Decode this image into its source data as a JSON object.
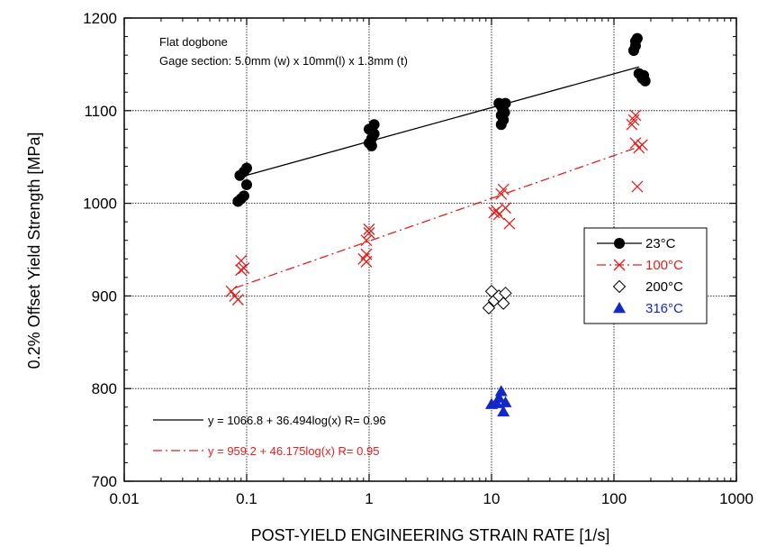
{
  "chart_data": {
    "type": "scatter",
    "x_scale": "log",
    "xlabel": "POST-YIELD ENGINEERING STRAIN RATE [1/s]",
    "ylabel": "0.2% Offset Yield Strength [MPa]",
    "xlim": [
      0.01,
      1000
    ],
    "ylim": [
      700,
      1200
    ],
    "x_ticks": [
      "0.01",
      "0.1",
      "1",
      "10",
      "100",
      "1000"
    ],
    "y_ticks": [
      "700",
      "800",
      "900",
      "1000",
      "1100",
      "1200"
    ],
    "grid": true,
    "legend_position": "right",
    "annotations": [
      "Flat dogbone",
      "Gage section: 5.0mm (w) x 10mm(l) x 1.3mm (t)"
    ],
    "series": [
      {
        "name": "23°C",
        "color": "#000000",
        "marker": "filled-circle",
        "points": [
          [
            0.085,
            1002
          ],
          [
            0.09,
            1005
          ],
          [
            0.095,
            1008
          ],
          [
            0.088,
            1030
          ],
          [
            0.095,
            1034
          ],
          [
            0.1,
            1038
          ],
          [
            0.1,
            1020
          ],
          [
            1.0,
            1065
          ],
          [
            1.05,
            1070
          ],
          [
            1.1,
            1075
          ],
          [
            1.0,
            1080
          ],
          [
            1.1,
            1085
          ],
          [
            1.05,
            1062
          ],
          [
            11.5,
            1108
          ],
          [
            12,
            1105
          ],
          [
            12.5,
            1100
          ],
          [
            12,
            1095
          ],
          [
            12.5,
            1090
          ],
          [
            12,
            1085
          ],
          [
            13,
            1108
          ],
          [
            12.8,
            1098
          ],
          [
            145,
            1165
          ],
          [
            150,
            1170
          ],
          [
            150,
            1175
          ],
          [
            155,
            1178
          ],
          [
            160,
            1140
          ],
          [
            170,
            1135
          ],
          [
            180,
            1132
          ],
          [
            175,
            1138
          ]
        ]
      },
      {
        "name": "100°C",
        "color": "#e0201e",
        "marker": "x",
        "points": [
          [
            0.075,
            905
          ],
          [
            0.08,
            900
          ],
          [
            0.085,
            896
          ],
          [
            0.09,
            938
          ],
          [
            0.09,
            928
          ],
          [
            0.095,
            930
          ],
          [
            0.9,
            940
          ],
          [
            0.95,
            945
          ],
          [
            0.95,
            937
          ],
          [
            1.0,
            968
          ],
          [
            1.0,
            972
          ],
          [
            0.95,
            960
          ],
          [
            10.5,
            990
          ],
          [
            11,
            992
          ],
          [
            11.5,
            988
          ],
          [
            12,
            1010
          ],
          [
            12.5,
            1015
          ],
          [
            13,
            995
          ],
          [
            14,
            978
          ],
          [
            140,
            1085
          ],
          [
            145,
            1090
          ],
          [
            150,
            1095
          ],
          [
            150,
            1065
          ],
          [
            160,
            1060
          ],
          [
            170,
            1063
          ],
          [
            155,
            1018
          ]
        ]
      },
      {
        "name": "200°C",
        "color": "#000000",
        "marker": "open-diamond",
        "points": [
          [
            9.5,
            887
          ],
          [
            10,
            905
          ],
          [
            10.5,
            895
          ],
          [
            11.5,
            900
          ],
          [
            12.5,
            892
          ],
          [
            13,
            903
          ]
        ]
      },
      {
        "name": "316°C",
        "color": "#1428c8",
        "marker": "filled-triangle",
        "points": [
          [
            10,
            783
          ],
          [
            11,
            784
          ],
          [
            11.5,
            790
          ],
          [
            12,
            797
          ],
          [
            12.5,
            775
          ],
          [
            13,
            785
          ]
        ]
      }
    ],
    "fits": [
      {
        "series": "23°C",
        "label": "y = 1066.8 + 36.494log(x)   R= 0.96",
        "a": 1066.8,
        "b": 36.494,
        "x_range": [
          0.1,
          160
        ],
        "color": "#000000",
        "style": "solid"
      },
      {
        "series": "100°C",
        "label": "y = 959.2 + 46.175log(x)   R= 0.95",
        "a": 959.2,
        "b": 46.175,
        "x_range": [
          0.08,
          160
        ],
        "color": "#e0201e",
        "style": "dashdot"
      }
    ]
  }
}
